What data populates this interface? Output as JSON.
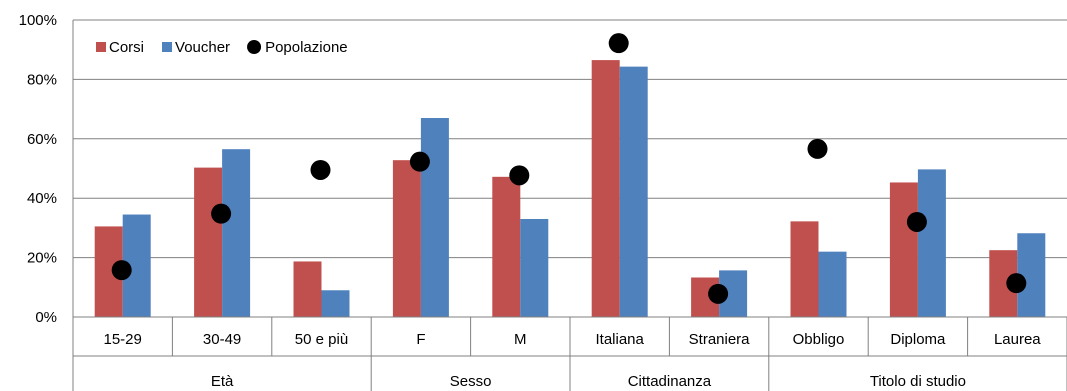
{
  "chart_data": {
    "type": "bar",
    "categories": [
      "15-29",
      "30-49",
      "50 e più",
      "F",
      "M",
      "Italiana",
      "Straniera",
      "Obbligo",
      "Diploma",
      "Laurea"
    ],
    "groups": [
      {
        "label": "Età",
        "count": 3
      },
      {
        "label": "Sesso",
        "count": 2
      },
      {
        "label": "Cittadinanza",
        "count": 2
      },
      {
        "label": "Titolo di studio",
        "count": 3
      }
    ],
    "series": [
      {
        "name": "Corsi",
        "type": "bar",
        "color": "#C0504D",
        "values": [
          30.5,
          50.3,
          18.7,
          52.8,
          47.2,
          86.5,
          13.3,
          32.2,
          45.3,
          22.5
        ]
      },
      {
        "name": "Voucher",
        "type": "bar",
        "color": "#4F81BD",
        "values": [
          34.5,
          56.5,
          9.0,
          67.0,
          33.0,
          84.3,
          15.7,
          22.0,
          49.7,
          28.2
        ]
      },
      {
        "name": "Popolazione",
        "type": "scatter",
        "color": "#000000",
        "values": [
          15.8,
          34.8,
          49.5,
          52.3,
          47.7,
          92.2,
          7.8,
          56.6,
          32.0,
          11.4
        ]
      }
    ],
    "yticks": [
      "0%",
      "20%",
      "40%",
      "60%",
      "80%",
      "100%"
    ],
    "ylim": [
      0,
      100
    ],
    "legend_position": "top-left",
    "grid": true
  }
}
